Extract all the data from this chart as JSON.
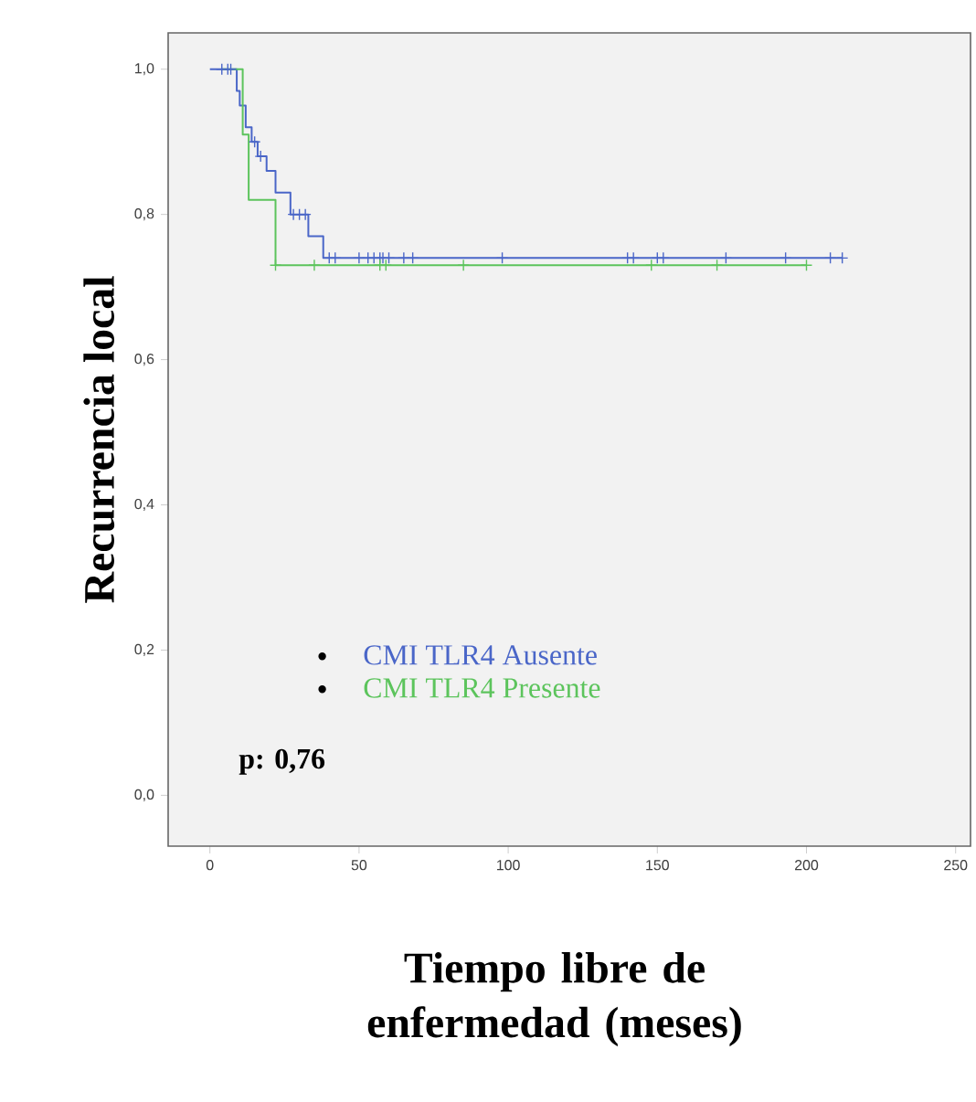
{
  "chart_data": {
    "type": "step",
    "xlabel": "Tiempo libre de enfermedad (meses)",
    "ylabel": "Recurrencia local",
    "xlim": [
      -14,
      255
    ],
    "ylim": [
      -0.07,
      1.05
    ],
    "xticks": [
      0,
      50,
      100,
      150,
      200,
      250
    ],
    "yticks": [
      {
        "value": 0,
        "label": "0,0"
      },
      {
        "value": 0.2,
        "label": "0,2"
      },
      {
        "value": 0.4,
        "label": "0,4"
      },
      {
        "value": 0.6,
        "label": "0,6"
      },
      {
        "value": 0.8,
        "label": "0,8"
      },
      {
        "value": 1,
        "label": "1,0"
      }
    ],
    "legend": "bottom left",
    "grid": false,
    "annotations": [
      "p: 0,76"
    ],
    "series": [
      {
        "name": "CMI TLR4 Ausente",
        "color": "#4a66c8",
        "x": [
          0,
          9,
          10,
          12,
          14,
          16,
          19,
          22,
          27,
          33,
          38,
          212
        ],
        "values": [
          1,
          0.97,
          0.95,
          0.92,
          0.9,
          0.88,
          0.86,
          0.83,
          0.8,
          0.77,
          0.74,
          0.74
        ]
      },
      {
        "name": "CMI TLR4 Presente",
        "color": "#5cc45c",
        "x": [
          4,
          11,
          13,
          22,
          200
        ],
        "values": [
          1,
          0.91,
          0.82,
          0.73,
          0.73
        ]
      },
      {
        "type": "scatter",
        "marker": "cross",
        "color": "#4a66c8",
        "x": [
          4,
          6,
          7,
          15,
          17,
          28,
          30,
          32,
          40,
          42,
          50,
          53,
          55,
          57,
          58,
          60,
          65,
          68,
          98,
          140,
          142,
          150,
          152,
          173,
          193,
          208,
          212
        ],
        "values": [
          1,
          1,
          1,
          0.9,
          0.88,
          0.8,
          0.8,
          0.8,
          0.74,
          0.74,
          0.74,
          0.74,
          0.74,
          0.74,
          0.74,
          0.74,
          0.74,
          0.74,
          0.74,
          0.74,
          0.74,
          0.74,
          0.74,
          0.74,
          0.74,
          0.74,
          0.74
        ]
      },
      {
        "type": "scatter",
        "marker": "cross",
        "color": "#5cc45c",
        "x": [
          22,
          35,
          57,
          59,
          85,
          148,
          170,
          200
        ],
        "values": [
          0.73,
          0.73,
          0.73,
          0.73,
          0.73,
          0.73,
          0.73,
          0.73
        ]
      }
    ]
  }
}
